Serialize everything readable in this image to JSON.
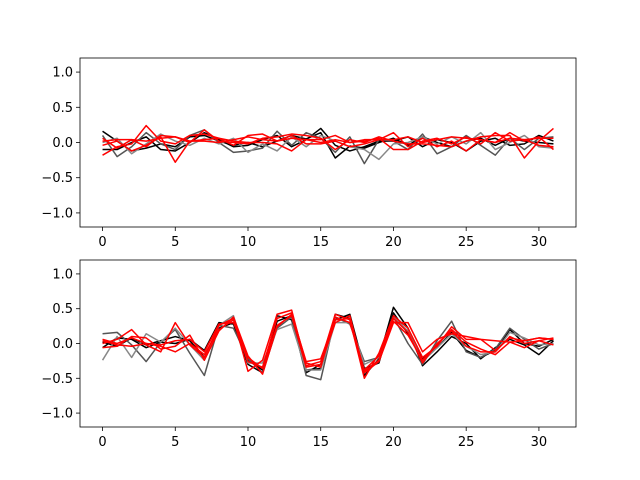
{
  "chart_data": [
    {
      "type": "line",
      "title": "",
      "xlabel": "",
      "ylabel": "",
      "xlim": [
        -1.55,
        32.55
      ],
      "ylim": [
        -1.2,
        1.2
      ],
      "grid": false,
      "legend": "none",
      "xticks": [
        0,
        5,
        10,
        15,
        20,
        25,
        30
      ],
      "yticks": [
        -1.0,
        -0.5,
        0.0,
        0.5,
        1.0
      ],
      "xtick_labels": [
        "0",
        "5",
        "10",
        "15",
        "20",
        "25",
        "30"
      ],
      "ytick_labels": [
        "−1.0",
        "−0.5",
        "0.0",
        "0.5",
        "1.0"
      ],
      "x": [
        0,
        1,
        2,
        3,
        4,
        5,
        6,
        7,
        8,
        9,
        10,
        11,
        12,
        13,
        14,
        15,
        16,
        17,
        18,
        19,
        20,
        21,
        22,
        23,
        24,
        25,
        26,
        27,
        28,
        29,
        30,
        31
      ],
      "series": [
        {
          "color": "#000000",
          "values": [
            0.16,
            0.02,
            -0.12,
            -0.08,
            -0.02,
            -0.06,
            0.08,
            0.1,
            0.02,
            -0.04,
            0.0,
            -0.06,
            0.02,
            0.1,
            0.05,
            0.14,
            -0.22,
            -0.05,
            -0.08,
            0.0,
            0.06,
            -0.04,
            0.08,
            0.0,
            -0.06,
            0.02,
            0.06,
            -0.04,
            0.06,
            0.02,
            0.0,
            -0.02
          ]
        },
        {
          "color": "#000000",
          "values": [
            -0.1,
            -0.1,
            0.0,
            0.08,
            -0.1,
            -0.12,
            0.0,
            0.14,
            0.04,
            -0.06,
            -0.04,
            0.04,
            0.1,
            -0.06,
            0.04,
            0.2,
            -0.04,
            -0.12,
            -0.06,
            0.02,
            0.02,
            0.08,
            -0.06,
            0.04,
            0.0,
            -0.12,
            0.02,
            0.06,
            -0.04,
            -0.02,
            0.1,
            0.02
          ]
        },
        {
          "color": "#555555",
          "values": [
            0.1,
            -0.2,
            -0.06,
            0.14,
            -0.02,
            -0.1,
            0.1,
            0.18,
            0.0,
            -0.14,
            -0.12,
            -0.08,
            0.16,
            -0.04,
            0.14,
            0.06,
            -0.14,
            0.08,
            -0.3,
            0.04,
            0.02,
            -0.1,
            0.12,
            -0.16,
            -0.06,
            0.1,
            -0.04,
            -0.18,
            0.06,
            -0.1,
            0.06,
            0.08
          ]
        },
        {
          "color": "#888888",
          "values": [
            0.0,
            0.06,
            -0.16,
            -0.02,
            0.12,
            0.02,
            -0.04,
            0.06,
            -0.02,
            0.06,
            -0.14,
            -0.02,
            -0.12,
            0.08,
            -0.06,
            0.1,
            0.02,
            -0.06,
            -0.1,
            -0.24,
            -0.02,
            0.0,
            0.08,
            -0.02,
            0.08,
            -0.02,
            0.14,
            -0.1,
            0.0,
            0.1,
            -0.06,
            -0.08
          ]
        },
        {
          "color": "#ff0000",
          "values": [
            -0.18,
            -0.06,
            -0.02,
            0.24,
            0.02,
            -0.02,
            0.1,
            0.12,
            0.06,
            -0.04,
            0.1,
            0.12,
            0.02,
            0.1,
            -0.02,
            -0.02,
            0.02,
            -0.06,
            -0.02,
            0.04,
            0.14,
            -0.06,
            0.06,
            -0.06,
            0.02,
            -0.12,
            0.04,
            0.0,
            0.14,
            0.02,
            0.08,
            -0.1
          ]
        },
        {
          "color": "#ff0000",
          "values": [
            -0.04,
            0.02,
            -0.12,
            -0.04,
            0.08,
            -0.28,
            0.02,
            0.04,
            0.06,
            0.02,
            0.0,
            0.0,
            -0.02,
            -0.12,
            0.04,
            0.04,
            0.1,
            0.0,
            0.02,
            0.06,
            -0.1,
            -0.1,
            0.02,
            0.06,
            -0.02,
            0.08,
            -0.02,
            0.14,
            0.02,
            0.04,
            -0.04,
            -0.06
          ]
        },
        {
          "color": "#ff0000",
          "values": [
            0.02,
            0.04,
            0.04,
            0.02,
            0.06,
            0.08,
            0.02,
            0.02,
            0.0,
            0.04,
            0.08,
            0.04,
            0.02,
            0.06,
            0.04,
            0.0,
            0.04,
            0.0,
            0.04,
            0.04,
            0.04,
            0.08,
            0.0,
            0.04,
            0.08,
            0.06,
            0.04,
            0.0,
            0.06,
            0.04,
            0.06,
            0.06
          ]
        },
        {
          "color": "#ff0000",
          "values": [
            0.06,
            -0.08,
            0.04,
            -0.06,
            0.1,
            0.08,
            0.0,
            0.18,
            0.02,
            0.0,
            -0.02,
            0.06,
            0.08,
            0.12,
            0.1,
            0.06,
            -0.1,
            0.04,
            0.0,
            0.08,
            0.02,
            -0.02,
            -0.02,
            -0.04,
            -0.06,
            0.02,
            0.08,
            0.1,
            0.1,
            -0.22,
            0.02,
            0.2
          ]
        }
      ]
    },
    {
      "type": "line",
      "title": "",
      "xlabel": "",
      "ylabel": "",
      "xlim": [
        -1.55,
        32.55
      ],
      "ylim": [
        -1.2,
        1.2
      ],
      "grid": false,
      "legend": "none",
      "xticks": [
        0,
        5,
        10,
        15,
        20,
        25,
        30
      ],
      "yticks": [
        -1.0,
        -0.5,
        0.0,
        0.5,
        1.0
      ],
      "xtick_labels": [
        "0",
        "5",
        "10",
        "15",
        "20",
        "25",
        "30"
      ],
      "ytick_labels": [
        "−1.0",
        "−0.5",
        "0.0",
        "0.5",
        "1.0"
      ],
      "x": [
        0,
        1,
        2,
        3,
        4,
        5,
        6,
        7,
        8,
        9,
        10,
        11,
        12,
        13,
        14,
        15,
        16,
        17,
        18,
        19,
        20,
        21,
        22,
        23,
        24,
        25,
        26,
        27,
        28,
        29,
        30,
        31
      ],
      "series": [
        {
          "color": "#000000",
          "values": [
            0.02,
            -0.04,
            0.08,
            -0.02,
            0.04,
            0.1,
            0.04,
            -0.2,
            0.22,
            0.3,
            -0.24,
            -0.38,
            0.32,
            0.4,
            -0.38,
            -0.36,
            0.42,
            0.36,
            -0.46,
            -0.22,
            0.52,
            0.22,
            -0.32,
            -0.12,
            0.1,
            0.0,
            -0.22,
            -0.06,
            0.06,
            -0.02,
            -0.16,
            0.04
          ]
        },
        {
          "color": "#000000",
          "values": [
            -0.06,
            0.08,
            0.06,
            -0.06,
            0.02,
            0.0,
            0.06,
            -0.1,
            0.3,
            0.28,
            -0.3,
            -0.42,
            0.4,
            0.34,
            -0.42,
            -0.3,
            0.34,
            0.42,
            -0.36,
            -0.28,
            0.44,
            0.14,
            -0.22,
            -0.06,
            0.16,
            -0.1,
            -0.2,
            -0.1,
            0.2,
            0.0,
            -0.04,
            0.06
          ]
        },
        {
          "color": "#555555",
          "values": [
            0.14,
            0.16,
            -0.02,
            -0.26,
            0.02,
            0.2,
            -0.14,
            -0.46,
            0.26,
            0.22,
            -0.22,
            -0.42,
            0.22,
            0.38,
            -0.46,
            -0.52,
            0.38,
            0.28,
            -0.26,
            -0.2,
            0.38,
            0.0,
            -0.3,
            0.04,
            0.32,
            -0.12,
            -0.2,
            -0.08,
            0.22,
            0.06,
            -0.08,
            0.0
          ]
        },
        {
          "color": "#888888",
          "values": [
            -0.24,
            0.1,
            -0.2,
            0.14,
            0.02,
            0.22,
            -0.02,
            -0.24,
            0.26,
            0.4,
            -0.28,
            -0.28,
            0.2,
            0.28,
            -0.38,
            -0.38,
            0.3,
            0.3,
            -0.3,
            -0.2,
            0.38,
            0.18,
            -0.26,
            -0.06,
            0.14,
            -0.04,
            -0.16,
            -0.12,
            0.16,
            0.08,
            -0.02,
            0.0
          ]
        },
        {
          "color": "#ff0000",
          "values": [
            0.0,
            0.06,
            0.2,
            -0.02,
            -0.12,
            0.3,
            -0.02,
            -0.2,
            0.26,
            0.36,
            -0.4,
            -0.24,
            0.42,
            0.48,
            -0.32,
            -0.26,
            0.42,
            0.34,
            -0.5,
            -0.14,
            0.4,
            0.22,
            -0.2,
            -0.04,
            0.24,
            0.06,
            0.06,
            -0.1,
            0.08,
            0.04,
            0.08,
            0.06
          ]
        },
        {
          "color": "#ff0000",
          "values": [
            -0.06,
            -0.04,
            0.1,
            0.08,
            -0.08,
            -0.04,
            0.12,
            -0.24,
            0.18,
            0.38,
            -0.18,
            -0.44,
            0.24,
            0.42,
            -0.26,
            -0.22,
            0.34,
            0.36,
            -0.4,
            -0.24,
            0.32,
            0.12,
            -0.24,
            -0.02,
            0.2,
            0.02,
            -0.08,
            -0.16,
            0.02,
            -0.06,
            0.04,
            0.08
          ]
        },
        {
          "color": "#ff0000",
          "values": [
            0.04,
            -0.02,
            -0.04,
            0.0,
            -0.02,
            0.04,
            0.06,
            -0.12,
            0.28,
            0.3,
            -0.2,
            -0.36,
            0.26,
            0.4,
            -0.34,
            -0.3,
            0.3,
            0.4,
            -0.42,
            -0.26,
            0.3,
            0.3,
            -0.12,
            0.06,
            0.14,
            0.1,
            0.06,
            0.04,
            0.02,
            0.04,
            0.08,
            0.06
          ]
        },
        {
          "color": "#ff0000",
          "values": [
            0.06,
            0.0,
            0.08,
            0.0,
            -0.04,
            -0.12,
            0.0,
            -0.16,
            0.2,
            0.34,
            -0.26,
            -0.34,
            0.36,
            0.44,
            -0.28,
            -0.34,
            0.38,
            0.3,
            -0.38,
            -0.18,
            0.36,
            0.16,
            -0.28,
            0.0,
            0.18,
            -0.04,
            -0.12,
            -0.12,
            0.1,
            0.0,
            0.04,
            -0.02
          ]
        }
      ]
    }
  ]
}
